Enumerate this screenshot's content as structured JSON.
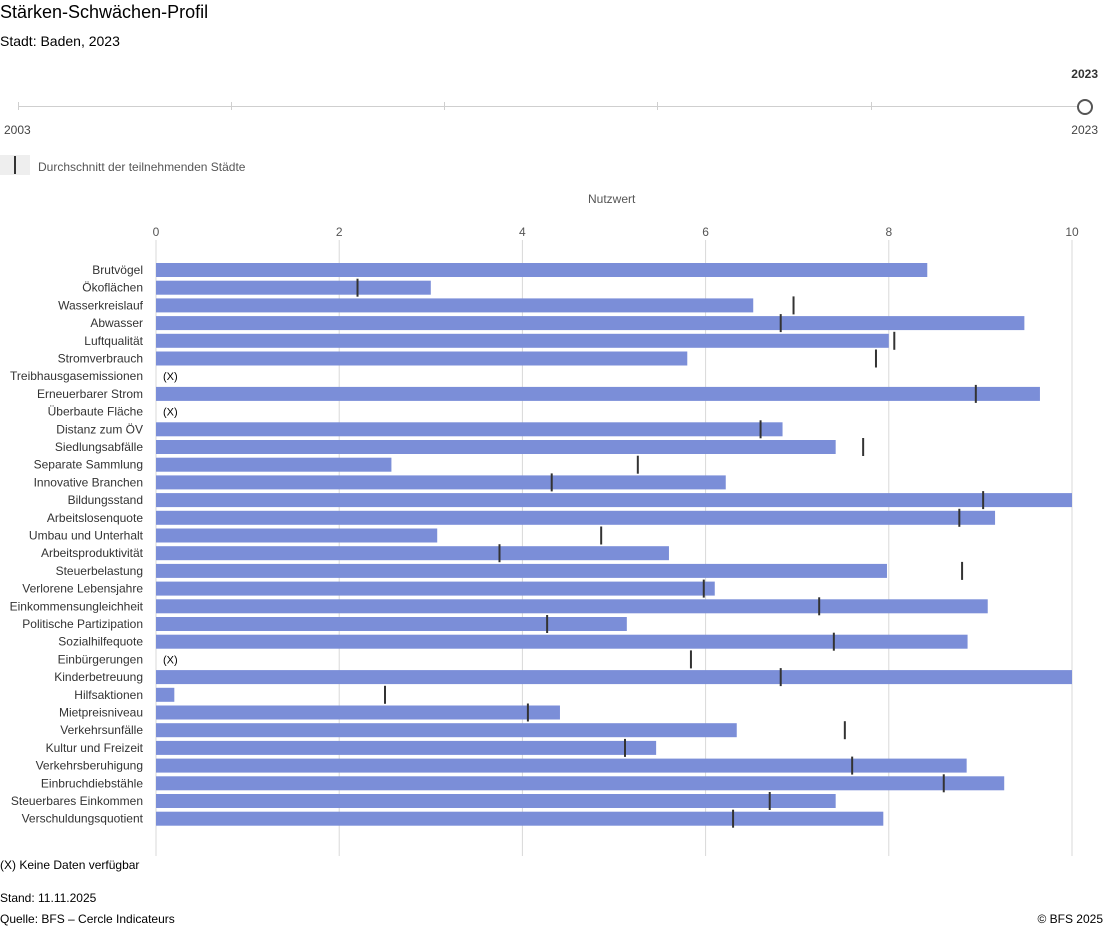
{
  "header": {
    "title": "Stärken-Schwächen-Profil",
    "subtitle": "Stadt: Baden, 2023"
  },
  "year_slider": {
    "selected_year": "2023",
    "min_label": "2003",
    "max_label": "2023"
  },
  "legend": {
    "average_label": "Durchschnitt der teilnehmenden Städte"
  },
  "colors": {
    "bar": "#7b8ed8",
    "average_marker": "#333333",
    "grid": "#d9d9d9"
  },
  "chart_data": {
    "type": "bar",
    "orientation": "horizontal",
    "xlabel": "Nutzwert",
    "xlim": [
      0,
      10
    ],
    "xticks": [
      0,
      2,
      4,
      6,
      8,
      10
    ],
    "grid": true,
    "na_label": "(X)",
    "categories": [
      "Brutvögel",
      "Ökoflächen",
      "Wasserkreislauf",
      "Abwasser",
      "Luftqualität",
      "Stromverbrauch",
      "Treibhausgasemissionen",
      "Erneuerbarer Strom",
      "Überbaute Fläche",
      "Distanz zum ÖV",
      "Siedlungsabfälle",
      "Separate Sammlung",
      "Innovative Branchen",
      "Bildungsstand",
      "Arbeitslosenquote",
      "Umbau und Unterhalt",
      "Arbeitsproduktivität",
      "Steuerbelastung",
      "Verlorene Lebensjahre",
      "Einkommensungleichheit",
      "Politische Partizipation",
      "Sozialhilfequote",
      "Einbürgerungen",
      "Kinderbetreuung",
      "Hilfsaktionen",
      "Mietpreisniveau",
      "Verkehrsunfälle",
      "Kultur und Freizeit",
      "Verkehrsberuhigung",
      "Einbruchdiebstähle",
      "Steuerbares Einkommen",
      "Verschuldungsquotient"
    ],
    "series": [
      {
        "name": "Baden",
        "values": [
          8.42,
          3.0,
          6.52,
          9.48,
          8.0,
          5.8,
          null,
          9.65,
          null,
          6.84,
          7.42,
          2.57,
          6.22,
          10.0,
          9.16,
          3.07,
          5.6,
          7.98,
          6.1,
          9.08,
          5.14,
          8.86,
          null,
          10.0,
          0.2,
          4.41,
          6.34,
          5.46,
          8.85,
          9.26,
          7.42,
          7.94
        ]
      },
      {
        "name": "Durchschnitt der teilnehmenden Städte",
        "values": [
          null,
          2.2,
          6.96,
          6.82,
          8.06,
          7.86,
          null,
          8.95,
          null,
          6.6,
          7.72,
          5.26,
          4.32,
          9.03,
          8.77,
          4.86,
          3.75,
          8.8,
          5.98,
          7.24,
          4.27,
          7.4,
          5.84,
          6.82,
          2.5,
          4.06,
          7.52,
          5.12,
          7.6,
          8.6,
          6.7,
          6.3
        ]
      }
    ]
  },
  "footer": {
    "note": "(X) Keine Daten verfügbar",
    "stand": "Stand: 11.11.2025",
    "source": "Quelle: BFS – Cercle Indicateurs",
    "copyright": "© BFS 2025"
  }
}
